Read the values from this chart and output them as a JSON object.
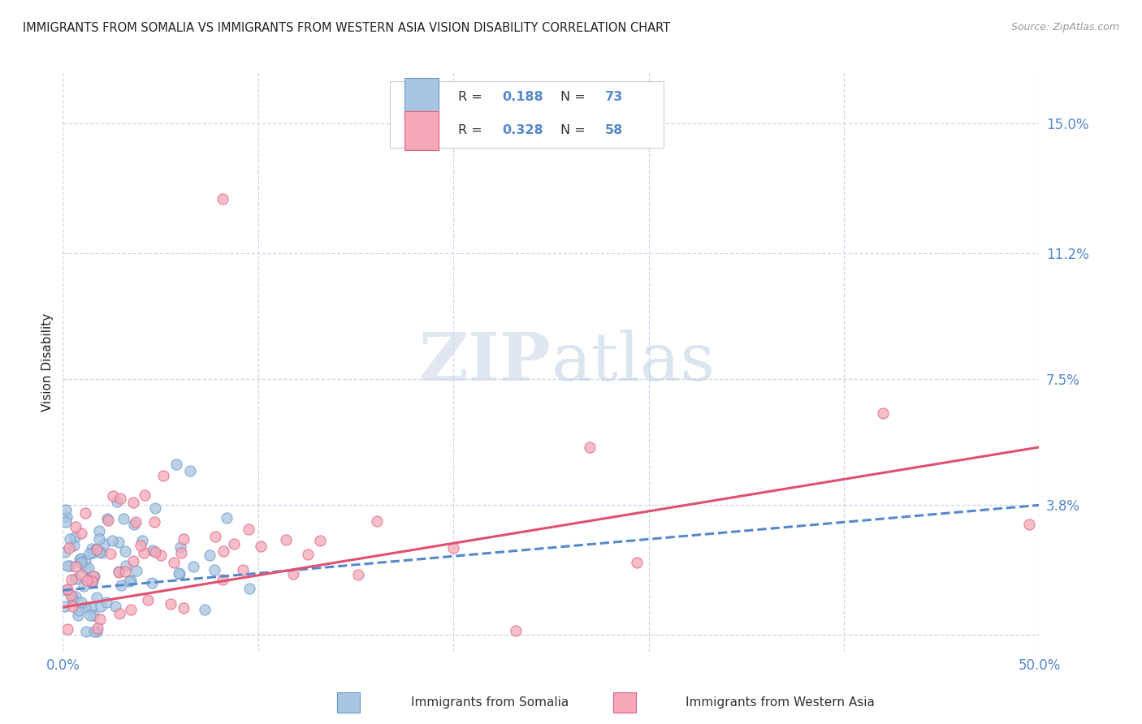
{
  "title": "IMMIGRANTS FROM SOMALIA VS IMMIGRANTS FROM WESTERN ASIA VISION DISABILITY CORRELATION CHART",
  "source": "Source: ZipAtlas.com",
  "ylabel": "Vision Disability",
  "xlim": [
    0,
    0.5
  ],
  "ylim": [
    -0.005,
    0.165
  ],
  "ytick_positions": [
    0.0,
    0.038,
    0.075,
    0.112,
    0.15
  ],
  "ytick_labels": [
    "",
    "3.8%",
    "7.5%",
    "11.2%",
    "15.0%"
  ],
  "xtick_positions": [
    0.0,
    0.1,
    0.2,
    0.3,
    0.4,
    0.5
  ],
  "xtick_labels": [
    "0.0%",
    "",
    "",
    "",
    "",
    "50.0%"
  ],
  "grid_color": "#c8d8ec",
  "background_color": "#ffffff",
  "somalia_fill": "#a8c4e0",
  "somalia_edge": "#6699cc",
  "western_fill": "#f4a8b8",
  "western_edge": "#e06080",
  "somalia_line_color": "#5588cc",
  "western_line_color": "#e05070",
  "somalia_R": 0.188,
  "somalia_N": 73,
  "western_asia_R": 0.328,
  "western_asia_N": 58,
  "watermark_zip_color": "#c8d8e8",
  "watermark_atlas_color": "#c8d8e8",
  "title_color": "#222222",
  "source_color": "#999999",
  "axis_label_color": "#222222",
  "tick_color": "#5588cc",
  "legend_R_color": "#5588cc",
  "legend_N_color": "#5588cc"
}
